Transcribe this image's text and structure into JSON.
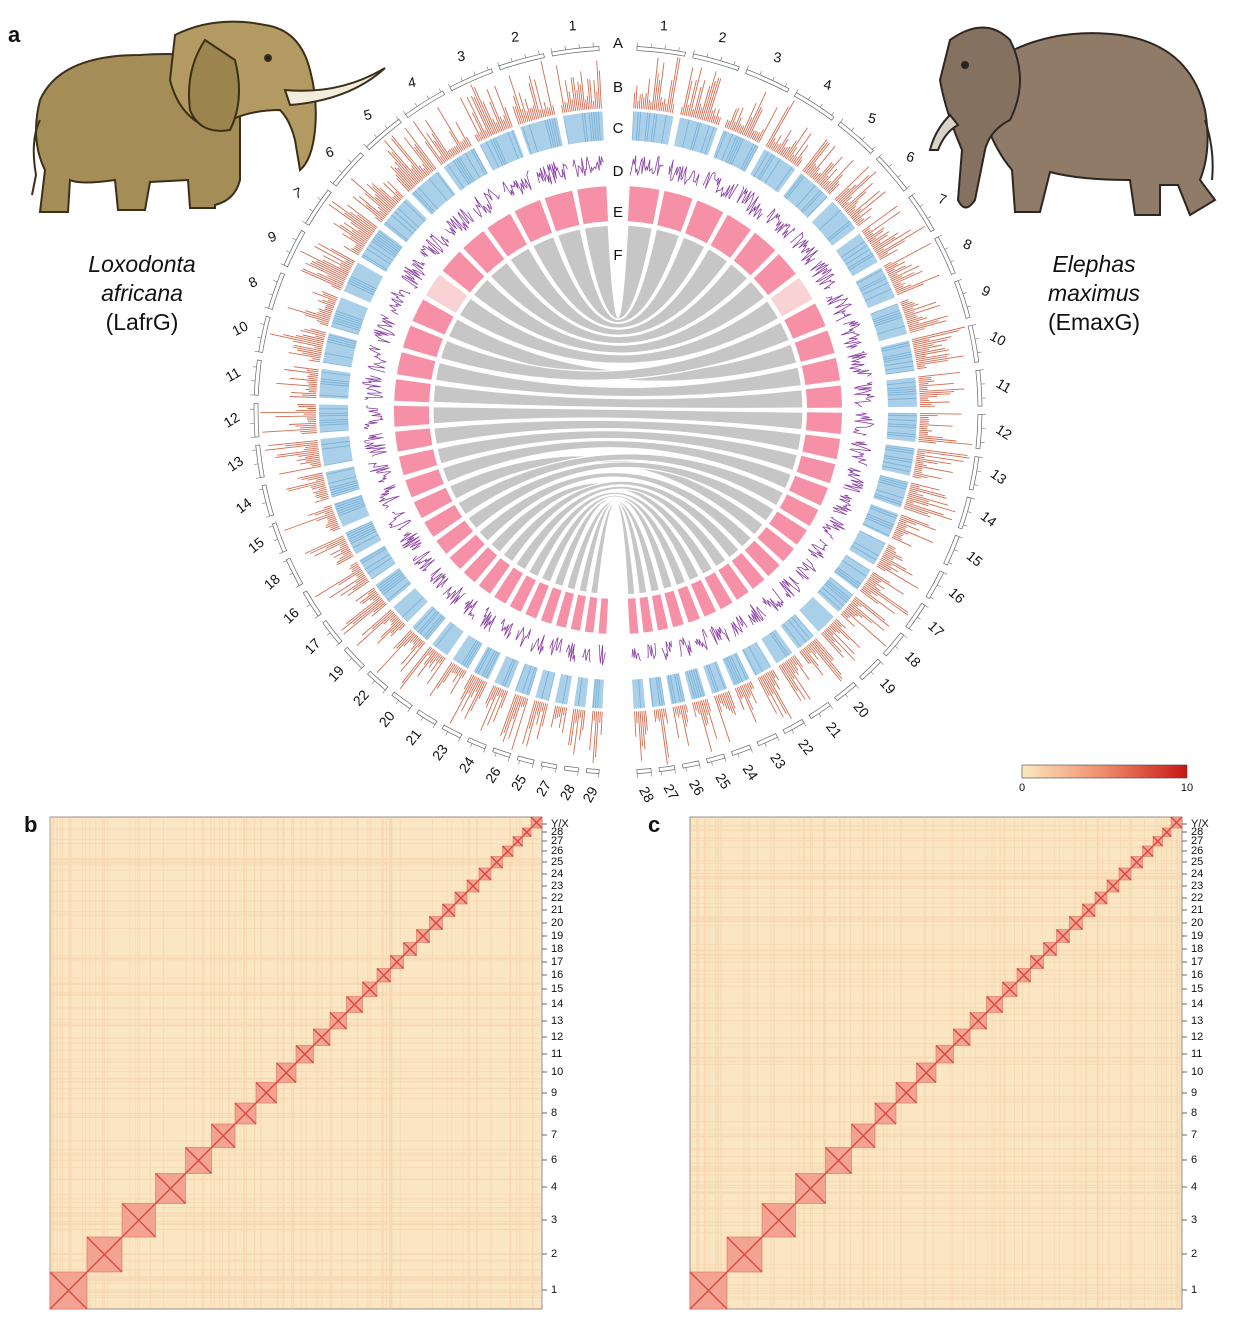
{
  "panel_labels": [
    "a",
    "b",
    "c"
  ],
  "species": [
    {
      "lines": [
        "Loxodonta",
        "africana"
      ],
      "code": "(LafrG)"
    },
    {
      "lines": [
        "Elephas",
        "maximus"
      ],
      "code": "(EmaxG)"
    }
  ],
  "circos": {
    "track_labels": [
      "A",
      "B",
      "C",
      "D",
      "E",
      "F"
    ],
    "left_chromosomes": [
      "1",
      "2",
      "3",
      "4",
      "5",
      "6",
      "7",
      "9",
      "8",
      "10",
      "11",
      "12",
      "13",
      "14",
      "15",
      "18",
      "16",
      "17",
      "19",
      "22",
      "20",
      "21",
      "23",
      "24",
      "26",
      "25",
      "27",
      "28",
      "29"
    ],
    "right_chromosomes": [
      "1",
      "2",
      "3",
      "4",
      "5",
      "6",
      "7",
      "8",
      "9",
      "10",
      "11",
      "12",
      "13",
      "14",
      "15",
      "16",
      "17",
      "18",
      "19",
      "20",
      "21",
      "22",
      "23",
      "24",
      "25",
      "26",
      "27",
      "28"
    ]
  },
  "colorbar": {
    "min": "0",
    "max": "10"
  },
  "hic": {
    "b": {
      "labels": [
        "1",
        "2",
        "3",
        "4",
        "6",
        "7",
        "8",
        "9",
        "10",
        "11",
        "12",
        "13",
        "14",
        "15",
        "16",
        "17",
        "18",
        "19",
        "20",
        "21",
        "22",
        "23",
        "24",
        "25",
        "26",
        "27",
        "28",
        "Y/X"
      ]
    },
    "c": {
      "labels": [
        "1",
        "2",
        "3",
        "4",
        "6",
        "7",
        "8",
        "9",
        "10",
        "11",
        "12",
        "13",
        "14",
        "15",
        "16",
        "17",
        "18",
        "19",
        "20",
        "21",
        "22",
        "23",
        "24",
        "25",
        "26",
        "27",
        "28",
        "Y/X"
      ]
    }
  }
}
